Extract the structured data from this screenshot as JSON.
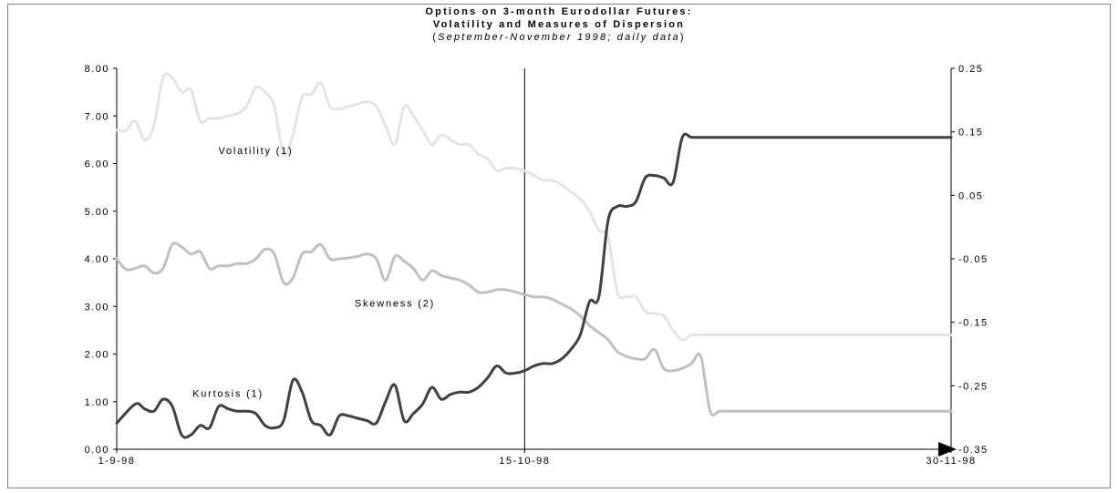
{
  "chart_data": {
    "type": "line",
    "title_line1": "Options on 3-month Eurodollar Futures:",
    "title_line2": "Volatility and Measures of Dispersion",
    "subtitle_open": "(",
    "subtitle_italic": "September-November 1998; daily data",
    "subtitle_close": ")",
    "x_ticks": [
      "1-9-98",
      "15-10-98",
      "30-11-98"
    ],
    "x_tick_positions": [
      0,
      44,
      90
    ],
    "marker_x": 44,
    "y_left": {
      "ylim": [
        0,
        8
      ],
      "ticks": [
        0,
        1,
        2,
        3,
        4,
        5,
        6,
        7,
        8
      ],
      "tick_labels": [
        "0.00",
        "1.00",
        "2.00",
        "3.00",
        "4.00",
        "5.00",
        "6.00",
        "7.00",
        "8.00"
      ]
    },
    "y_right": {
      "ylim": [
        -0.35,
        0.25
      ],
      "ticks": [
        -0.35,
        -0.25,
        -0.15,
        -0.05,
        0.05,
        0.15,
        0.25
      ],
      "tick_labels": [
        "-0.35",
        "-0.25",
        "-0.15",
        "-0.05",
        "0.05",
        "0.15",
        "0.25"
      ]
    },
    "series": [
      {
        "name": "Volatility (1)",
        "axis": "left",
        "color": "#e4e4e4",
        "label_at": [
          15,
          6.2
        ],
        "x": [
          0,
          1,
          2,
          3,
          4,
          5,
          6,
          7,
          8,
          9,
          10,
          11,
          12,
          13,
          14,
          15,
          16,
          17,
          18,
          19,
          20,
          21,
          22,
          23,
          24,
          25,
          26,
          27,
          28,
          29,
          30,
          31,
          32,
          33,
          34,
          35,
          36,
          37,
          38,
          39,
          40,
          41,
          42,
          43,
          44,
          45,
          46,
          47,
          48,
          49,
          50,
          51,
          52,
          53,
          54,
          55,
          56,
          57,
          58,
          59,
          60,
          61,
          62,
          63,
          64,
          65,
          66,
          67,
          68,
          69,
          70,
          71,
          72,
          73,
          74,
          75,
          76,
          77,
          78,
          79,
          80,
          81,
          82,
          83,
          84,
          85,
          86,
          87,
          88,
          89,
          90
        ],
        "values": [
          6.7,
          6.7,
          6.9,
          6.5,
          6.8,
          7.8,
          7.8,
          7.5,
          7.55,
          6.9,
          6.95,
          6.95,
          7.0,
          7.05,
          7.2,
          7.6,
          7.5,
          7.2,
          6.2,
          6.6,
          7.4,
          7.45,
          7.7,
          7.2,
          7.15,
          7.2,
          7.25,
          7.3,
          7.2,
          6.8,
          6.4,
          7.2,
          7.0,
          6.7,
          6.4,
          6.6,
          6.5,
          6.4,
          6.4,
          6.2,
          6.1,
          5.85,
          5.9,
          5.9,
          5.85,
          5.75,
          5.65,
          5.65,
          5.55,
          5.4,
          5.25,
          5.0,
          4.6,
          4.45,
          3.3,
          3.2,
          3.2,
          2.9,
          2.85,
          2.8,
          2.5,
          2.3,
          2.4,
          2.4,
          2.4,
          2.4,
          2.4,
          2.4,
          2.4,
          2.4,
          2.4,
          2.4,
          2.4,
          2.4,
          2.4,
          2.4,
          2.4,
          2.4,
          2.4,
          2.4,
          2.4,
          2.4,
          2.4,
          2.4,
          2.4,
          2.4,
          2.4,
          2.4,
          2.4,
          2.4,
          2.4
        ]
      },
      {
        "name": "Skewness (2)",
        "axis": "left",
        "color": "#c0c0c0",
        "label_at": [
          30,
          3.0
        ],
        "x": [
          0,
          1,
          2,
          3,
          4,
          5,
          6,
          7,
          8,
          9,
          10,
          11,
          12,
          13,
          14,
          15,
          16,
          17,
          18,
          19,
          20,
          21,
          22,
          23,
          24,
          25,
          26,
          27,
          28,
          29,
          30,
          31,
          32,
          33,
          34,
          35,
          36,
          37,
          38,
          39,
          40,
          41,
          42,
          43,
          44,
          45,
          46,
          47,
          48,
          49,
          50,
          51,
          52,
          53,
          54,
          55,
          56,
          57,
          58,
          59,
          60,
          61,
          62,
          63,
          64,
          65,
          66,
          67,
          68,
          69,
          70,
          71,
          72,
          73,
          74,
          75,
          76,
          77,
          78,
          79,
          80,
          81,
          82,
          83,
          84,
          85,
          86,
          87,
          88,
          89,
          90
        ],
        "values": [
          4.0,
          3.78,
          3.8,
          3.85,
          3.7,
          3.8,
          4.3,
          4.25,
          4.1,
          4.15,
          3.8,
          3.85,
          3.85,
          3.9,
          3.9,
          4.0,
          4.2,
          4.1,
          3.5,
          3.6,
          4.1,
          4.15,
          4.3,
          4.0,
          4.0,
          4.02,
          4.05,
          4.1,
          4.0,
          3.55,
          4.05,
          3.95,
          3.8,
          3.55,
          3.75,
          3.65,
          3.6,
          3.55,
          3.45,
          3.3,
          3.3,
          3.35,
          3.35,
          3.3,
          3.25,
          3.2,
          3.2,
          3.15,
          3.05,
          2.95,
          2.8,
          2.6,
          2.45,
          2.3,
          2.05,
          1.95,
          1.9,
          1.9,
          2.1,
          1.7,
          1.65,
          1.7,
          1.8,
          1.95,
          0.8,
          0.8,
          0.8,
          0.8,
          0.8,
          0.8,
          0.8,
          0.8,
          0.8,
          0.8,
          0.8,
          0.8,
          0.8,
          0.8,
          0.8,
          0.8,
          0.8,
          0.8,
          0.8,
          0.8,
          0.8,
          0.8,
          0.8,
          0.8,
          0.8,
          0.8,
          0.8
        ]
      },
      {
        "name": "Kurtosis (1)",
        "axis": "left",
        "color": "#404040",
        "label_at": [
          12,
          1.1
        ],
        "x": [
          0,
          2,
          3,
          4,
          5,
          6,
          7,
          8,
          9,
          10,
          11,
          12,
          13,
          14,
          15,
          16,
          17,
          18,
          19,
          20,
          21,
          22,
          23,
          24,
          25,
          26,
          27,
          28,
          29,
          30,
          31,
          32,
          33,
          34,
          35,
          36,
          37,
          38,
          39,
          40,
          41,
          42,
          43,
          44,
          45,
          46,
          47,
          48,
          49,
          50,
          51,
          52,
          53,
          54,
          55,
          56,
          57,
          58,
          59,
          60,
          61,
          62,
          63,
          64,
          65,
          66,
          67,
          68,
          69,
          70,
          71,
          72,
          73,
          74,
          75,
          76,
          77,
          78,
          79,
          80,
          81,
          82,
          83,
          84,
          85,
          86,
          87,
          88,
          89,
          90
        ],
        "values": [
          0.55,
          0.95,
          0.85,
          0.8,
          1.05,
          0.9,
          0.3,
          0.3,
          0.5,
          0.45,
          0.9,
          0.85,
          0.8,
          0.8,
          0.75,
          0.5,
          0.45,
          0.6,
          1.45,
          1.2,
          0.6,
          0.5,
          0.3,
          0.7,
          0.7,
          0.65,
          0.6,
          0.55,
          1.0,
          1.35,
          0.6,
          0.75,
          0.95,
          1.3,
          1.05,
          1.15,
          1.2,
          1.2,
          1.3,
          1.5,
          1.75,
          1.6,
          1.6,
          1.65,
          1.75,
          1.8,
          1.8,
          1.9,
          2.1,
          2.4,
          3.1,
          3.2,
          4.8,
          5.1,
          5.1,
          5.2,
          5.7,
          5.75,
          5.7,
          5.6,
          6.55,
          6.55,
          6.55,
          6.55,
          6.55,
          6.55,
          6.55,
          6.55,
          6.55,
          6.55,
          6.55,
          6.55,
          6.55,
          6.55,
          6.55,
          6.55,
          6.55,
          6.55,
          6.55,
          6.55,
          6.55,
          6.55,
          6.55,
          6.55,
          6.55,
          6.55,
          6.55,
          6.55,
          6.55,
          6.55
        ]
      }
    ]
  }
}
